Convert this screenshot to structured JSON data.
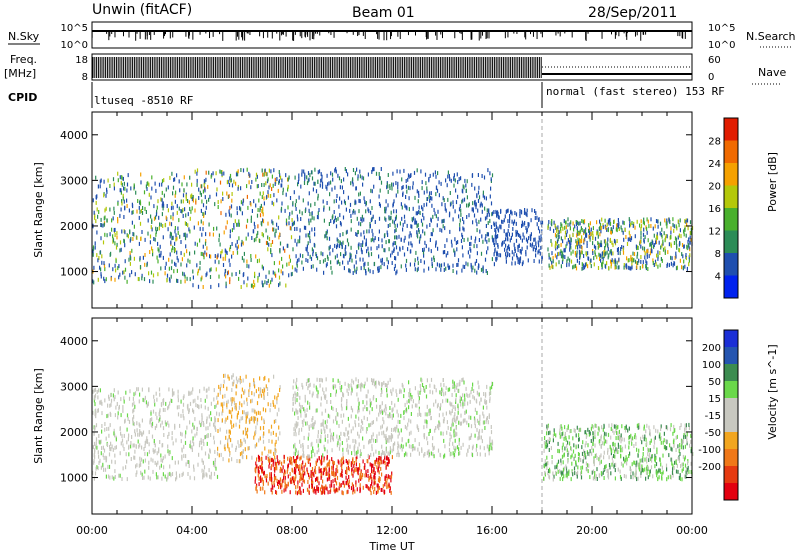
{
  "header": {
    "station": "Unwin (fitACF)",
    "beam": "Beam 01",
    "date": "28/Sep/2011"
  },
  "top_panels": {
    "nsky_label": "N.Sky",
    "nsky_ticks": [
      "10^5",
      "10^0"
    ],
    "nsearch_label": "N.Search",
    "nsearch_ticks": [
      "10^5",
      "10^0"
    ],
    "freq_label_line1": "Freq.",
    "freq_label_line2": "[MHz]",
    "freq_ticks": [
      "18",
      "8"
    ],
    "nave_label": "Nave",
    "nave_ticks": [
      "60",
      "0"
    ],
    "cpid_label": "CPID",
    "cpid_segments": [
      {
        "label": "ltuseq -8510 RF",
        "start_hour": 0,
        "end_hour": 18
      },
      {
        "label": "normal (fast stereo) 153 RF",
        "start_hour": 18,
        "end_hour": 24
      }
    ]
  },
  "x_axis": {
    "label": "Time UT",
    "tick_labels": [
      "00:00",
      "04:00",
      "08:00",
      "12:00",
      "16:00",
      "20:00",
      "00:00"
    ],
    "tick_hours": [
      0,
      4,
      8,
      12,
      16,
      20,
      24
    ],
    "range": [
      0,
      24
    ]
  },
  "colors": {
    "power": [
      "#0022ee",
      "#1f4faf",
      "#2c8c57",
      "#49b02d",
      "#b4c80a",
      "#f5a100",
      "#f06a00",
      "#e11c00"
    ],
    "velocity": [
      "#1b2fd6",
      "#2555b0",
      "#3c8c50",
      "#6ad84a",
      "#c8c8c0",
      "#c8c8c0",
      "#f2a620",
      "#f07818",
      "#e63a10",
      "#e3000f"
    ]
  },
  "chart_data": [
    {
      "type": "heatmap",
      "title": "Power",
      "ylabel": "Slant Range [km]",
      "xlabel": "",
      "ylim": [
        200,
        4500
      ],
      "xlim": [
        0,
        24
      ],
      "y_ticks": [
        1000,
        2000,
        3000,
        4000
      ],
      "colorbar_label": "Power [dB]",
      "colorbar_ticks": [
        4,
        8,
        12,
        16,
        20,
        24,
        28
      ],
      "colorbar_range": [
        0,
        32
      ],
      "regions": [
        {
          "t0": 0.0,
          "t1": 4.0,
          "r0": 800,
          "r1": 3200,
          "pmin": 4,
          "pmax": 22
        },
        {
          "t0": 4.0,
          "t1": 8.0,
          "r0": 700,
          "r1": 3300,
          "pmin": 4,
          "pmax": 26
        },
        {
          "t0": 8.0,
          "t1": 12.0,
          "r0": 1000,
          "r1": 3300,
          "pmin": 4,
          "pmax": 12
        },
        {
          "t0": 12.0,
          "t1": 16.0,
          "r0": 1000,
          "r1": 3300,
          "pmin": 4,
          "pmax": 10
        },
        {
          "t0": 16.0,
          "t1": 18.0,
          "r0": 1200,
          "r1": 2400,
          "pmin": 4,
          "pmax": 8
        },
        {
          "t0": 18.2,
          "t1": 24.0,
          "r0": 1100,
          "r1": 2200,
          "pmin": 4,
          "pmax": 24
        }
      ],
      "cpid_boundary_hour": 18
    },
    {
      "type": "heatmap",
      "title": "Velocity",
      "ylabel": "Slant Range [km]",
      "xlabel": "Time UT",
      "ylim": [
        200,
        4500
      ],
      "xlim": [
        0,
        24
      ],
      "y_ticks": [
        1000,
        2000,
        3000,
        4000
      ],
      "colorbar_label": "Velocity [m s^-1]",
      "colorbar_ticks": [
        200,
        100,
        50,
        15,
        -15,
        -50,
        -100,
        -200
      ],
      "colorbar_range": [
        -250,
        250
      ],
      "regions": [
        {
          "t0": 0.0,
          "t1": 5.0,
          "r0": 1000,
          "r1": 3000,
          "vmin": -20,
          "vmax": 20
        },
        {
          "t0": 5.0,
          "t1": 7.5,
          "r0": 1400,
          "r1": 3300,
          "vmin": -100,
          "vmax": -15
        },
        {
          "t0": 6.5,
          "t1": 12.0,
          "r0": 700,
          "r1": 1500,
          "vmin": -250,
          "vmax": -150
        },
        {
          "t0": 8.0,
          "t1": 16.0,
          "r0": 1500,
          "r1": 3200,
          "vmin": -40,
          "vmax": 30
        },
        {
          "t0": 18.0,
          "t1": 24.0,
          "r0": 1000,
          "r1": 2200,
          "vmin": -15,
          "vmax": 70
        }
      ],
      "cpid_boundary_hour": 18
    }
  ]
}
